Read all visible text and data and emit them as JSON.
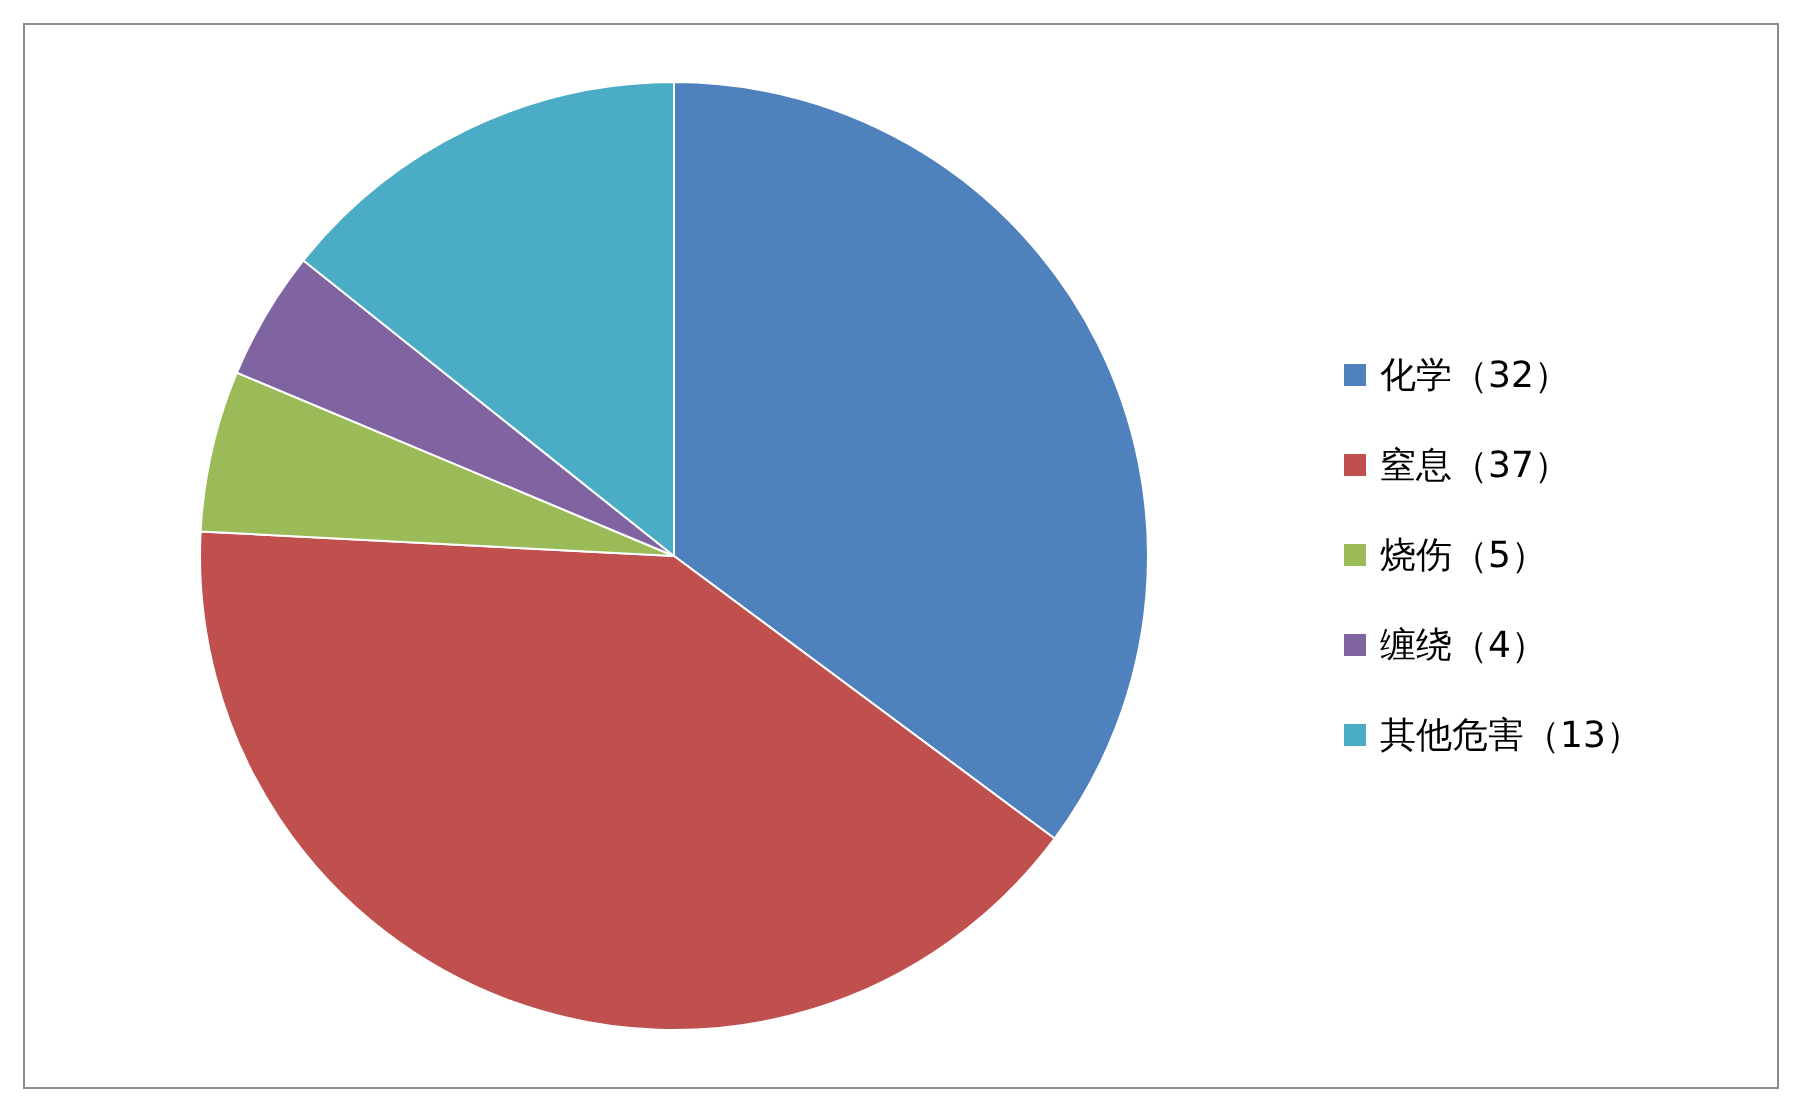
{
  "chart_data": {
    "type": "pie",
    "categories": [
      "化学（32）",
      "窒息（37）",
      "烧伤（5）",
      "缠绕（4）",
      "其他危害（13）"
    ],
    "values": [
      32,
      37,
      5,
      4,
      13
    ],
    "colors": [
      "#4f81bd",
      "#c0504d",
      "#9bbb59",
      "#8064a2",
      "#4bacc6"
    ],
    "legend": "right"
  }
}
